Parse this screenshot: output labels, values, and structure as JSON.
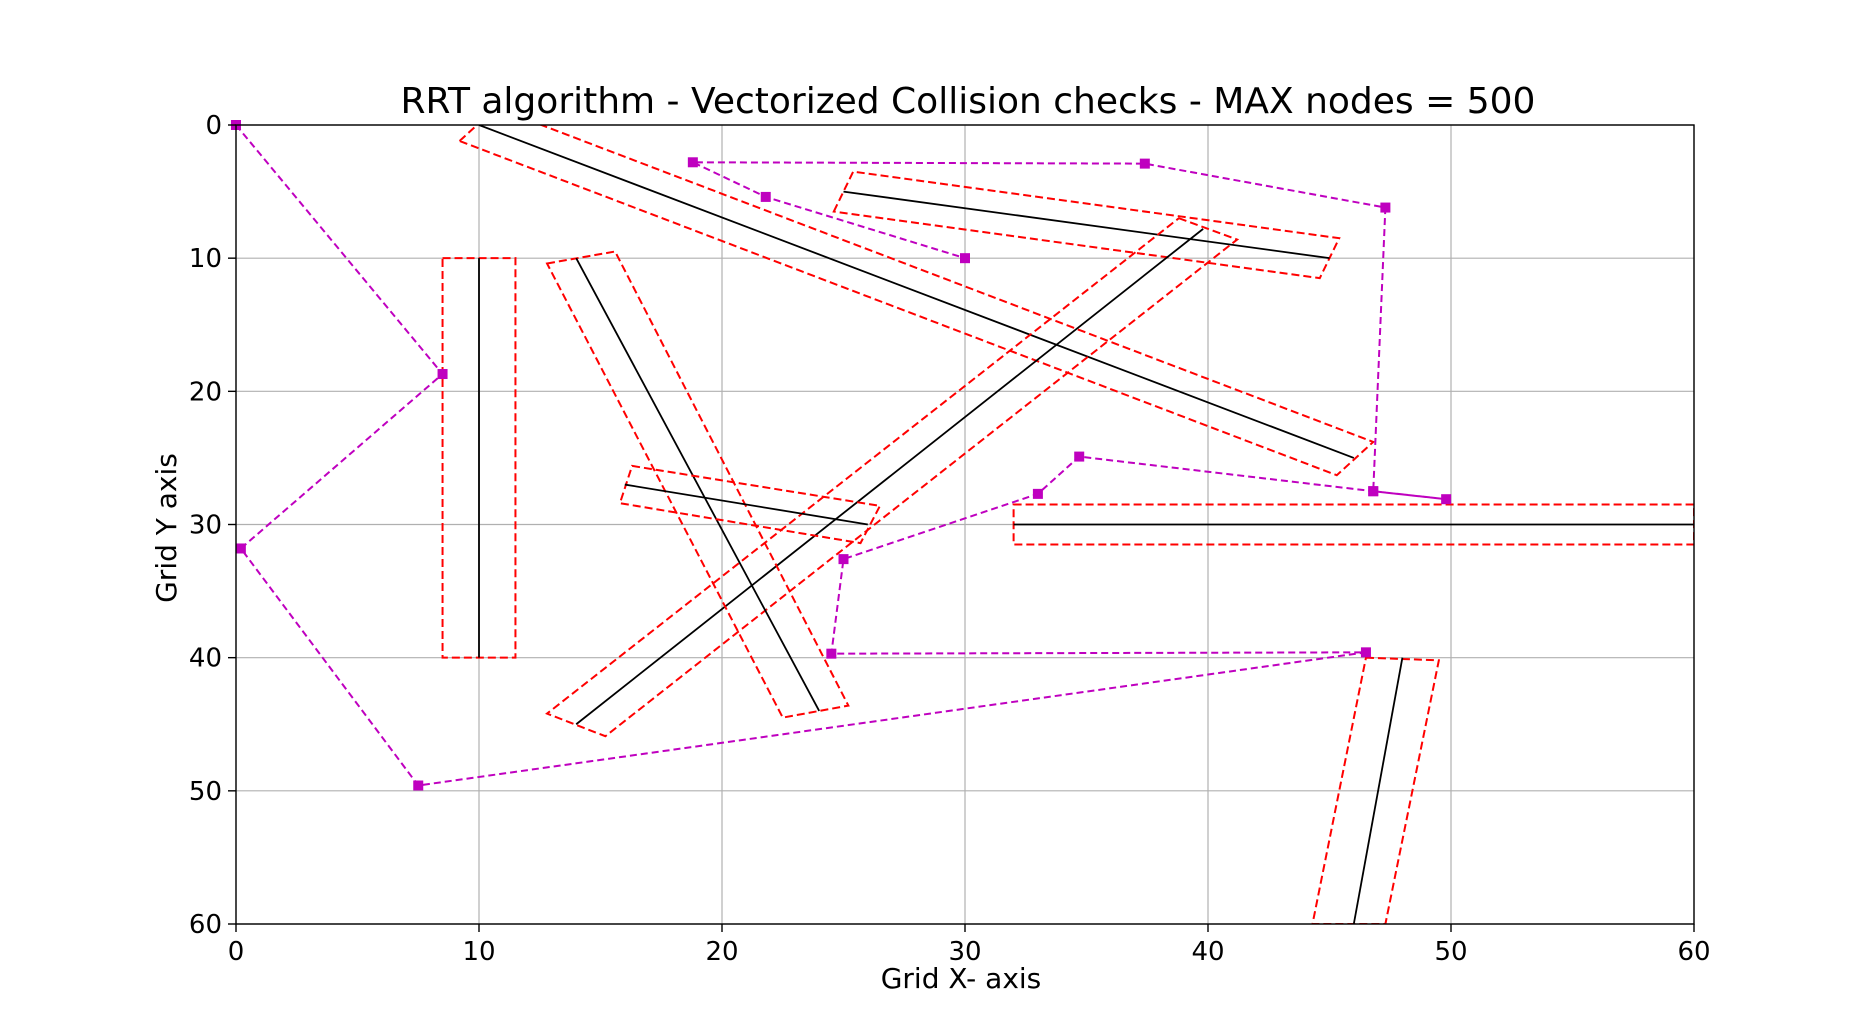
{
  "chart_data": {
    "type": "line",
    "title": "RRT algorithm - Vectorized Collision checks  - MAX nodes = 500",
    "xlabel": "Grid X- axis",
    "ylabel": "Grid Y axis",
    "xlim": [
      0,
      60
    ],
    "ylim": [
      60,
      0
    ],
    "y_axis_inverted": true,
    "grid": true,
    "x_ticks": [
      0,
      10,
      20,
      30,
      40,
      50,
      60
    ],
    "y_ticks": [
      0,
      10,
      20,
      30,
      40,
      50,
      60
    ],
    "x_tick_labels": [
      "0",
      "10",
      "20",
      "30",
      "40",
      "50",
      "60"
    ],
    "y_tick_labels": [
      "0",
      "10",
      "20",
      "30",
      "40",
      "50",
      "60"
    ],
    "colors": {
      "obstacle_line": "#000000",
      "obstacle_boundary": "#ff0000",
      "rrt_path": "#bf00bf",
      "grid": "#b0b0b0"
    },
    "obstacles": [
      {
        "start": [
          10,
          0
        ],
        "end": [
          46,
          25
        ],
        "boundary": [
          [
            9.2,
            1.2
          ],
          [
            10.7,
            -1.3
          ],
          [
            46.8,
            23.8
          ],
          [
            45.3,
            26.3
          ]
        ]
      },
      {
        "start": [
          25,
          5
        ],
        "end": [
          45,
          10
        ],
        "boundary": [
          [
            24.6,
            6.5
          ],
          [
            25.4,
            3.5
          ],
          [
            45.4,
            8.5
          ],
          [
            44.6,
            11.5
          ]
        ]
      },
      {
        "start": [
          39.8,
          7.8
        ],
        "end": [
          14,
          45
        ],
        "boundary": [
          [
            38.8,
            7.0
          ],
          [
            41.2,
            8.6
          ],
          [
            15.2,
            45.9
          ],
          [
            12.8,
            44.2
          ]
        ]
      },
      {
        "start": [
          10,
          10
        ],
        "end": [
          10,
          40
        ],
        "boundary": [
          [
            8.5,
            10
          ],
          [
            11.5,
            10
          ],
          [
            11.5,
            40
          ],
          [
            8.5,
            40
          ]
        ]
      },
      {
        "start": [
          14,
          10
        ],
        "end": [
          24,
          44
        ],
        "boundary": [
          [
            12.8,
            10.4
          ],
          [
            15.6,
            9.5
          ],
          [
            25.2,
            43.6
          ],
          [
            22.5,
            44.5
          ]
        ]
      },
      {
        "start": [
          16,
          27
        ],
        "end": [
          26,
          30
        ],
        "boundary": [
          [
            16.3,
            25.6
          ],
          [
            26.5,
            28.6
          ],
          [
            25.7,
            31.4
          ],
          [
            15.8,
            28.4
          ]
        ]
      },
      {
        "start": [
          32,
          30
        ],
        "end": [
          60,
          30
        ],
        "boundary": [
          [
            32,
            28.5
          ],
          [
            60,
            28.5
          ],
          [
            60,
            31.5
          ],
          [
            32,
            31.5
          ]
        ]
      },
      {
        "start": [
          48,
          40
        ],
        "end": [
          46,
          60
        ],
        "boundary": [
          [
            46.5,
            40
          ],
          [
            49.5,
            40.2
          ],
          [
            47.3,
            60
          ],
          [
            44.3,
            60
          ]
        ]
      }
    ],
    "rrt_path": {
      "x": [
        0,
        8.5,
        0.2,
        7.5,
        46.5,
        24.5,
        25,
        33,
        34.7,
        46.8,
        49.8,
        46.8,
        47.3,
        37.4,
        18.8,
        21.8,
        30
      ],
      "y": [
        0,
        18.7,
        31.8,
        49.6,
        39.6,
        39.7,
        32.6,
        27.7,
        24.9,
        27.5,
        28.1,
        27.5,
        6.2,
        2.9,
        2.8,
        5.4,
        10
      ]
    }
  }
}
